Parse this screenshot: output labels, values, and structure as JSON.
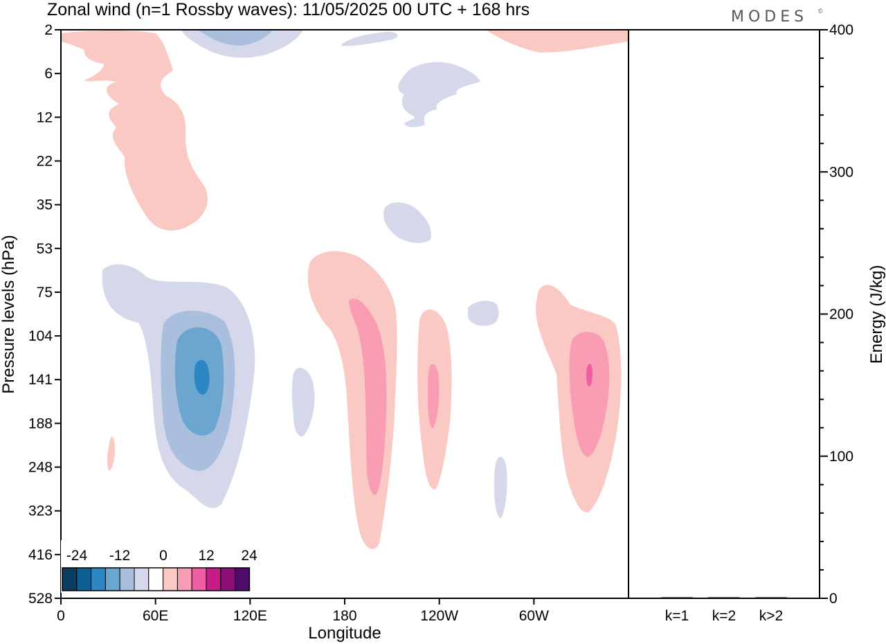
{
  "chart_data": {
    "type": "heatmap",
    "title": "Zonal wind (n=1 Rossby waves):  11/05/2025  00 UTC  + 168 hrs",
    "logo": "MODES",
    "logo_mark": "©",
    "xlabel": "Longitude",
    "ylabel": "Pressure levels (hPa)",
    "x_ticks": [
      "0",
      "60E",
      "120E",
      "180",
      "120W",
      "60W"
    ],
    "y_ticks": [
      "2",
      "6",
      "12",
      "22",
      "35",
      "53",
      "75",
      "104",
      "141",
      "188",
      "248",
      "323",
      "416",
      "528"
    ],
    "colorbar": {
      "tick_labels": [
        "-24",
        "-12",
        "0",
        "12",
        "24"
      ],
      "colors": [
        "#0a3d62",
        "#0e5f93",
        "#2b86c2",
        "#6aa6d0",
        "#a9bfdd",
        "#d5d8ea",
        "#ffffff",
        "#fac9c4",
        "#f89db4",
        "#ef5ea2",
        "#c91b88",
        "#8d0f77",
        "#4f0b6b"
      ]
    },
    "energy_panel": {
      "ylabel": "Energy (J/kg)",
      "ylim": [
        0,
        400
      ],
      "y_ticks": [
        "0",
        "100",
        "200",
        "300",
        "400"
      ],
      "categories": [
        "k=1",
        "k=2",
        "k>2"
      ],
      "values": [
        0,
        0,
        0
      ]
    },
    "contour_features": [
      {
        "sign": "negative",
        "peak": -18,
        "lon": 90,
        "level": 141
      },
      {
        "sign": "positive",
        "peak": 8,
        "lon": 40,
        "level": 12
      },
      {
        "sign": "positive",
        "peak": 11,
        "lon": 193,
        "level": 141
      },
      {
        "sign": "positive",
        "peak": 10,
        "lon": 234,
        "level": 141
      },
      {
        "sign": "positive",
        "peak": 14,
        "lon": 318,
        "level": 141
      },
      {
        "sign": "negative",
        "peak": -3,
        "lon": 215,
        "level": 6
      },
      {
        "sign": "negative",
        "peak": -3,
        "lon": 206,
        "level": 41
      },
      {
        "sign": "negative",
        "peak": -3,
        "lon": 147,
        "level": 160
      },
      {
        "sign": "negative",
        "peak": -3,
        "lon": 260,
        "level": 290
      },
      {
        "sign": "negative",
        "peak": -4,
        "lon": 105,
        "level": 2
      },
      {
        "sign": "positive",
        "peak": 8,
        "lon": 305,
        "level": 2
      }
    ]
  }
}
